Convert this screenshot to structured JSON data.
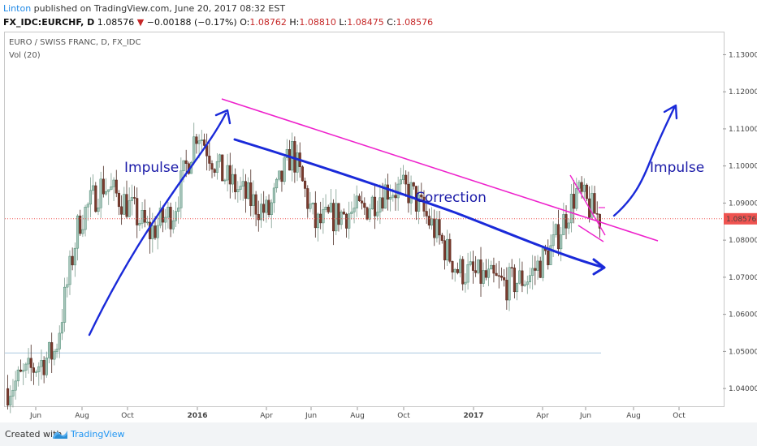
{
  "header": {
    "author": "Linton",
    "published_text": " published on TradingView.com, June 20, 2017 08:32 EST",
    "symbol": "FX_IDC:EURCHF, D",
    "last": "1.08576",
    "arrow": "▼",
    "change": "−0.00188 (−0.17%)",
    "o_label": "O:",
    "o": "1.08762",
    "h_label": "H:",
    "h": "1.08810",
    "l_label": "L:",
    "l": "1.08475",
    "c_label": "C:",
    "c": "1.08576"
  },
  "footer": {
    "created": "Created with",
    "brand": "TradingView"
  },
  "colors": {
    "up": "#26a69a",
    "down": "#ef5350",
    "body_up": "#a8c5bb",
    "body_down": "#7a3b2e",
    "trend": "#ee22cc",
    "arrow": "#1a2ad9",
    "price": "#ef5350"
  },
  "chart_data": {
    "type": "candlestick",
    "title": "EURO / SWISS FRANC, D, FX_IDC",
    "indicator": "Vol (20)",
    "ylim": [
      1.035,
      1.136
    ],
    "yticks": [
      "1.04000",
      "1.05000",
      "1.06000",
      "1.07000",
      "1.08000",
      "1.09000",
      "1.10000",
      "1.11000",
      "1.12000",
      "1.13000"
    ],
    "xticks": [
      "Jun",
      "Aug",
      "Oct",
      "2016",
      "Apr",
      "Jun",
      "Aug",
      "Oct",
      "2017",
      "Apr",
      "Jun",
      "Aug",
      "Oct"
    ],
    "last_price_label": "1.08576",
    "path_months": [
      "2015-05",
      "2015-06",
      "2015-07",
      "2015-08",
      "2015-09",
      "2015-10",
      "2015-11",
      "2015-12",
      "2016-01",
      "2016-02",
      "2016-03",
      "2016-04",
      "2016-05",
      "2016-06",
      "2016-07",
      "2016-08",
      "2016-09",
      "2016-10",
      "2016-11",
      "2016-12",
      "2017-01",
      "2017-02",
      "2017-03",
      "2017-04",
      "2017-05",
      "2017-06"
    ],
    "path_closes": [
      1.04,
      1.045,
      1.05,
      1.085,
      1.095,
      1.09,
      1.082,
      1.088,
      1.11,
      1.098,
      1.092,
      1.087,
      1.104,
      1.084,
      1.087,
      1.088,
      1.094,
      1.093,
      1.083,
      1.072,
      1.07,
      1.068,
      1.07,
      1.078,
      1.093,
      1.0858
    ],
    "annotations": [
      "Impulse",
      "Correction",
      "Impulse"
    ]
  }
}
